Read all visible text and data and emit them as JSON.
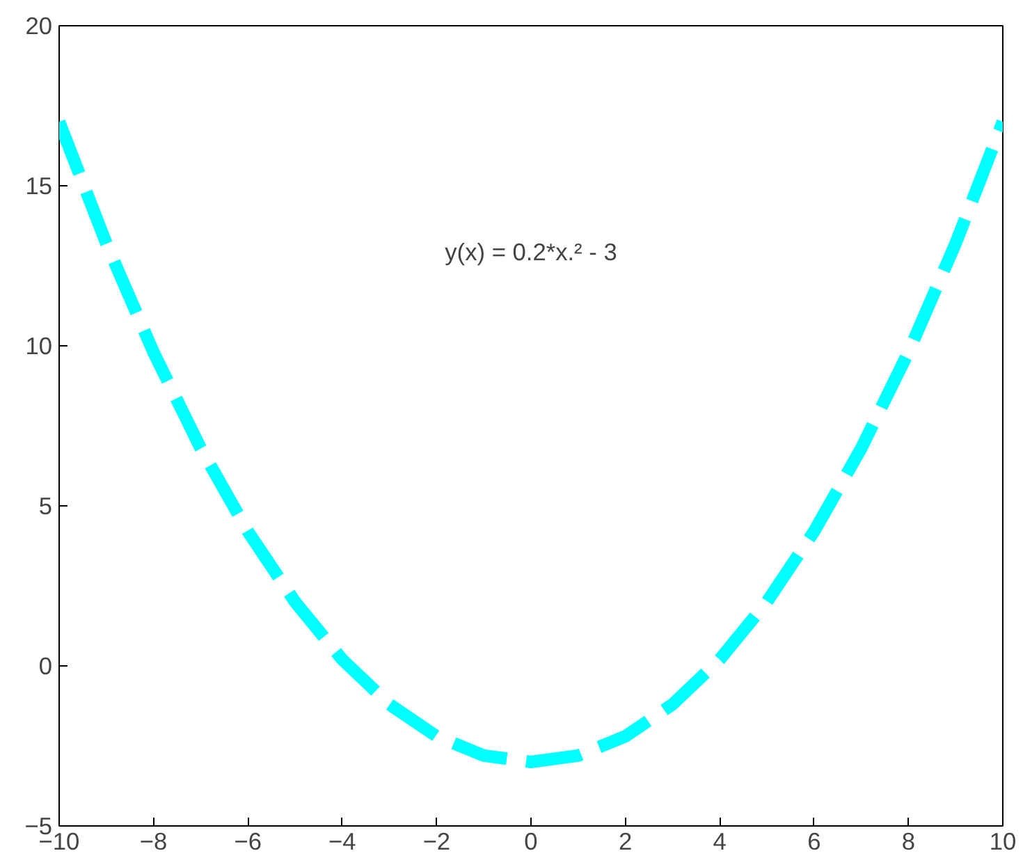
{
  "chart_data": {
    "type": "line",
    "x": [
      -10,
      -9,
      -8,
      -7,
      -6,
      -5,
      -4,
      -3,
      -2,
      -1,
      0,
      1,
      2,
      3,
      4,
      5,
      6,
      7,
      8,
      9,
      10
    ],
    "series": [
      {
        "color": "#00ffff",
        "values": [
          17,
          13.2,
          9.8,
          6.8,
          4.2,
          2,
          0.2,
          -1.2,
          -2.2,
          -2.8,
          -3,
          -2.8,
          -2.2,
          -1.2,
          0.2,
          2,
          4.2,
          6.8,
          9.8,
          13.2,
          17
        ]
      }
    ],
    "xlim": [
      -10,
      10
    ],
    "ylim": [
      -5,
      20
    ],
    "xticks": [
      -10,
      -8,
      -6,
      -4,
      -2,
      0,
      2,
      4,
      6,
      8,
      10
    ],
    "yticks": [
      -5,
      0,
      5,
      10,
      15,
      20
    ],
    "line_style": "dashed",
    "annotations": [
      "y(x) = 0.2*x.² - 3"
    ]
  }
}
